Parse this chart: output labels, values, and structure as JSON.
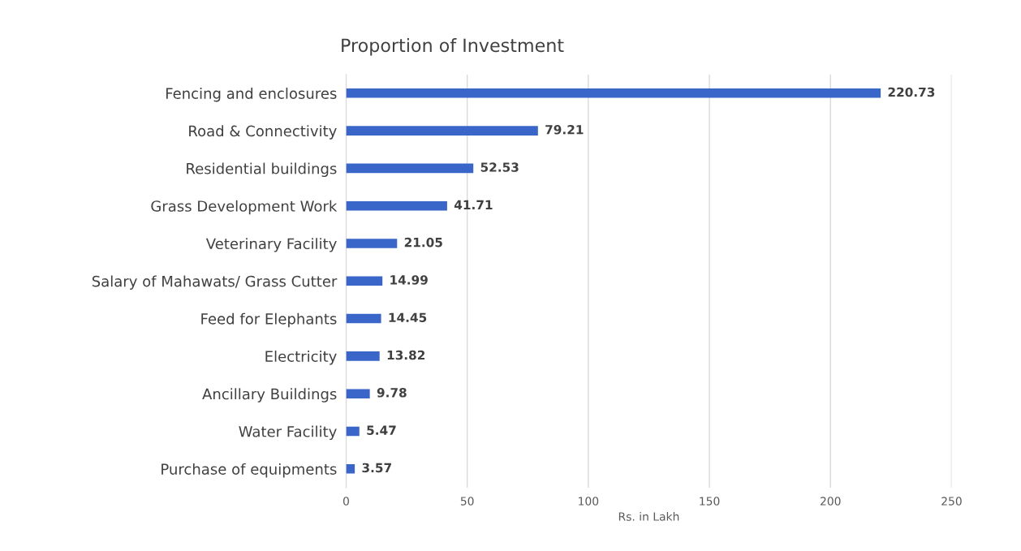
{
  "chart_data": {
    "type": "bar",
    "orientation": "horizontal",
    "title": "Proportion of Investment",
    "xlabel": "Rs. in Lakh",
    "categories": [
      "Fencing and enclosures",
      "Road & Connectivity",
      "Residential buildings",
      "Grass Development Work",
      "Veterinary Facility",
      "Salary of Mahawats/ Grass Cutter",
      "Feed for Elephants",
      "Electricity",
      "Ancillary Buildings",
      "Water Facility",
      "Purchase of equipments"
    ],
    "values": [
      220.73,
      79.21,
      52.53,
      41.71,
      21.05,
      14.99,
      14.45,
      13.82,
      9.78,
      5.47,
      3.57
    ],
    "color": "#3b66c9",
    "xlim": [
      0,
      250
    ],
    "xticks": [
      0,
      50,
      100,
      150,
      200,
      250
    ],
    "grid": "x",
    "data_labels": true
  }
}
